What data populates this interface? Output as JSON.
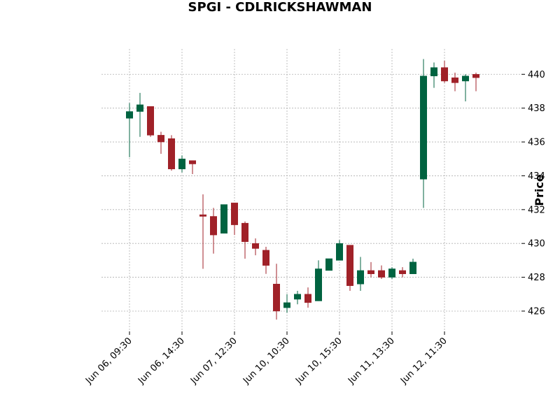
{
  "chart_data": {
    "type": "candlestick",
    "title": "SPGI - CDLRICKSHAWMAN",
    "xlabel": "",
    "ylabel": "Price",
    "ylim": [
      424.8,
      441.5
    ],
    "y_ticks": [
      426,
      428,
      430,
      432,
      434,
      436,
      438,
      440
    ],
    "x_tick_labels": [
      "Jun 06, 09:30",
      "Jun 06, 14:30",
      "Jun 07, 12:30",
      "Jun 10, 10:30",
      "Jun 10, 15:30",
      "Jun 11, 13:30",
      "Jun 12, 11:30"
    ],
    "x_tick_indices": [
      0,
      5,
      10,
      15,
      20,
      25,
      30
    ],
    "grid": true,
    "colors": {
      "up": "#006340",
      "down": "#a02128"
    },
    "candles": [
      {
        "o": 437.4,
        "h": 438.3,
        "l": 435.1,
        "c": 437.8
      },
      {
        "o": 437.8,
        "h": 438.9,
        "l": 436.3,
        "c": 438.2
      },
      {
        "o": 438.1,
        "h": 438.1,
        "l": 436.3,
        "c": 436.4
      },
      {
        "o": 436.4,
        "h": 436.6,
        "l": 435.3,
        "c": 436.0
      },
      {
        "o": 436.2,
        "h": 436.4,
        "l": 434.3,
        "c": 434.4
      },
      {
        "o": 434.4,
        "h": 435.2,
        "l": 434.2,
        "c": 435.0
      },
      {
        "o": 434.9,
        "h": 434.9,
        "l": 434.1,
        "c": 434.7
      },
      {
        "o": 431.7,
        "h": 432.9,
        "l": 428.5,
        "c": 431.6
      },
      {
        "o": 431.6,
        "h": 432.1,
        "l": 429.4,
        "c": 430.5
      },
      {
        "o": 430.6,
        "h": 432.3,
        "l": 430.6,
        "c": 432.3
      },
      {
        "o": 432.4,
        "h": 432.4,
        "l": 430.5,
        "c": 431.1
      },
      {
        "o": 431.2,
        "h": 431.3,
        "l": 429.1,
        "c": 430.1
      },
      {
        "o": 430.0,
        "h": 430.3,
        "l": 429.3,
        "c": 429.7
      },
      {
        "o": 429.6,
        "h": 429.8,
        "l": 428.2,
        "c": 428.7
      },
      {
        "o": 427.6,
        "h": 428.8,
        "l": 425.5,
        "c": 426.0
      },
      {
        "o": 426.2,
        "h": 427.0,
        "l": 425.9,
        "c": 426.5
      },
      {
        "o": 426.7,
        "h": 427.2,
        "l": 426.4,
        "c": 427.0
      },
      {
        "o": 427.0,
        "h": 427.4,
        "l": 426.2,
        "c": 426.5
      },
      {
        "o": 426.6,
        "h": 429.0,
        "l": 426.6,
        "c": 428.5
      },
      {
        "o": 428.4,
        "h": 429.1,
        "l": 428.4,
        "c": 429.1
      },
      {
        "o": 429.0,
        "h": 430.2,
        "l": 429.0,
        "c": 430.0
      },
      {
        "o": 429.9,
        "h": 429.9,
        "l": 427.2,
        "c": 427.5
      },
      {
        "o": 427.6,
        "h": 429.2,
        "l": 427.2,
        "c": 428.4
      },
      {
        "o": 428.4,
        "h": 428.9,
        "l": 428.0,
        "c": 428.2
      },
      {
        "o": 428.4,
        "h": 428.7,
        "l": 427.9,
        "c": 428.0
      },
      {
        "o": 428.0,
        "h": 428.6,
        "l": 427.9,
        "c": 428.5
      },
      {
        "o": 428.4,
        "h": 428.6,
        "l": 428.0,
        "c": 428.2
      },
      {
        "o": 428.2,
        "h": 429.1,
        "l": 428.2,
        "c": 428.9
      },
      {
        "o": 433.8,
        "h": 440.9,
        "l": 432.1,
        "c": 439.9
      },
      {
        "o": 439.9,
        "h": 440.7,
        "l": 439.2,
        "c": 440.4
      },
      {
        "o": 440.4,
        "h": 440.8,
        "l": 439.5,
        "c": 439.6
      },
      {
        "o": 439.8,
        "h": 440.1,
        "l": 439.0,
        "c": 439.5
      },
      {
        "o": 439.6,
        "h": 440.0,
        "l": 438.4,
        "c": 439.9
      },
      {
        "o": 440.0,
        "h": 440.1,
        "l": 439.0,
        "c": 439.8
      }
    ]
  }
}
